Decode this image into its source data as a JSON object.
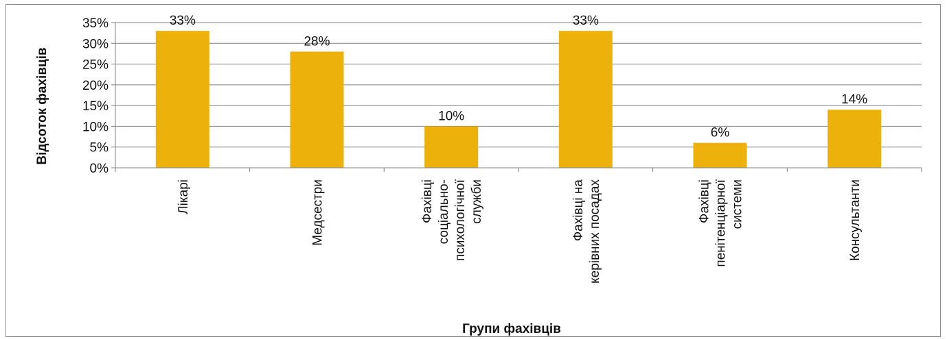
{
  "chart_data": {
    "type": "bar",
    "categories": [
      [
        "Лікарі"
      ],
      [
        "Медсестри"
      ],
      [
        "Фахівці",
        "соціально-",
        "психологічної",
        "служби"
      ],
      [
        "Фахівці на",
        "керівних посадах"
      ],
      [
        "Фахівці",
        "пенітенціарної",
        "системи"
      ],
      [
        "Консультанти"
      ]
    ],
    "values": [
      33,
      28,
      10,
      33,
      6,
      14
    ],
    "data_labels": [
      "33%",
      "28%",
      "10%",
      "33%",
      "6%",
      "14%"
    ],
    "xlabel": "Групи фахівців",
    "ylabel": "Відсоток фахівців",
    "ylim": [
      0,
      35
    ],
    "yticks": [
      {
        "value": 0,
        "label": "0%"
      },
      {
        "value": 5,
        "label": "5%"
      },
      {
        "value": 10,
        "label": "10%"
      },
      {
        "value": 15,
        "label": "15%"
      },
      {
        "value": 20,
        "label": "20%"
      },
      {
        "value": 25,
        "label": "25%"
      },
      {
        "value": 30,
        "label": "30%"
      },
      {
        "value": 35,
        "label": "35%"
      }
    ],
    "grid": true,
    "legend": "none",
    "bar_color": "#EDB10B",
    "grid_color": "#808080"
  }
}
